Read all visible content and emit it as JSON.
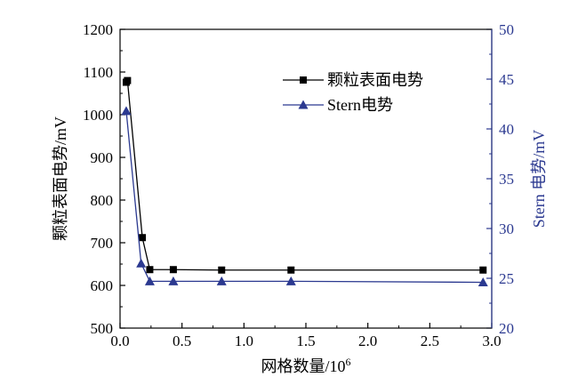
{
  "chart_data": {
    "type": "line",
    "xlabel": "网格数量/10",
    "xlabel_sup": "6",
    "ylabel_left": "颗粒表面电势/mV",
    "ylabel_right": "Stern 电势/mV",
    "xlim": [
      0.0,
      3.0
    ],
    "ylim_left": [
      500,
      1200
    ],
    "ylim_right": [
      20,
      50
    ],
    "x_ticks": [
      "0.0",
      "0.5",
      "1.0",
      "1.5",
      "2.0",
      "2.5",
      "3.0"
    ],
    "y_left_ticks": [
      "500",
      "600",
      "700",
      "800",
      "900",
      "1000",
      "1100",
      "1200"
    ],
    "y_right_ticks": [
      "20",
      "25",
      "30",
      "35",
      "40",
      "45",
      "50"
    ],
    "grid": false,
    "legend_position": "top-right",
    "series": [
      {
        "name": "颗粒表面电势",
        "axis": "left",
        "color": "#000000",
        "marker": "square",
        "x": [
          0.05,
          0.06,
          0.18,
          0.24,
          0.43,
          0.82,
          1.38,
          2.93
        ],
        "y": [
          1076,
          1080,
          712,
          637,
          637,
          636,
          636,
          636
        ]
      },
      {
        "name": "Stern电势",
        "axis": "right",
        "color": "#2b3990",
        "marker": "triangle",
        "x": [
          0.05,
          0.17,
          0.24,
          0.43,
          0.82,
          1.38,
          2.93
        ],
        "y": [
          41.8,
          26.5,
          24.7,
          24.7,
          24.7,
          24.7,
          24.6
        ]
      }
    ]
  }
}
